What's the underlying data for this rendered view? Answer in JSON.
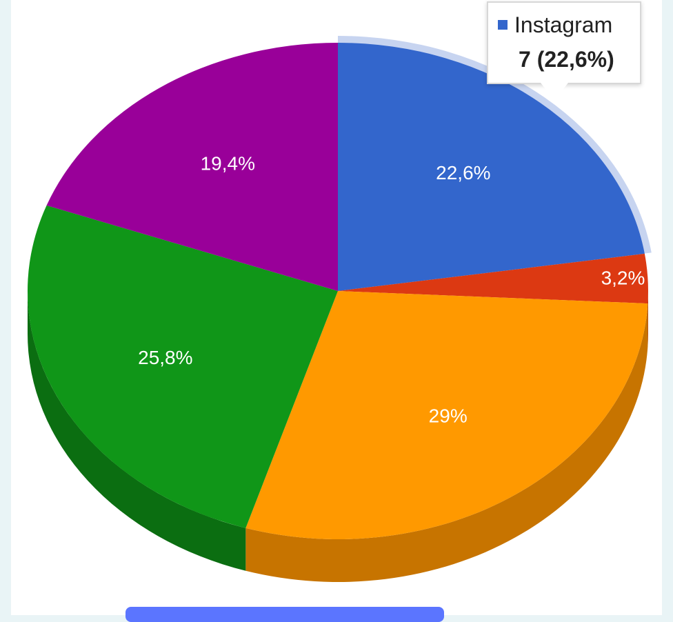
{
  "chart_data": {
    "type": "pie",
    "slices": [
      {
        "name": "Instagram",
        "count": 7,
        "percent": 22.6,
        "label": "22,6%",
        "color": "#3366cc",
        "side_color": "#244b99",
        "highlighted": true
      },
      {
        "name": "",
        "percent": 3.2,
        "label": "3,2%",
        "color": "#dc3912",
        "side_color": "#a42a0d"
      },
      {
        "name": "",
        "percent": 29.0,
        "label": "29%",
        "color": "#ff9900",
        "side_color": "#c77400"
      },
      {
        "name": "",
        "percent": 25.8,
        "label": "25,8%",
        "color": "#109618",
        "side_color": "#0b6e11"
      },
      {
        "name": "",
        "percent": 19.4,
        "label": "19,4%",
        "color": "#990099",
        "side_color": "#700070"
      }
    ],
    "style": "3d",
    "start_angle_deg": 0,
    "direction": "clockwise"
  },
  "tooltip": {
    "series_name": "Instagram",
    "value_text": "7 (22,6%)",
    "swatch_color": "#3366cc"
  },
  "colors": {
    "background": "#e9f4f6",
    "panel": "#ffffff",
    "bottom_strip": "#5b75ff",
    "highlight_ring": "#c7d4f0"
  }
}
